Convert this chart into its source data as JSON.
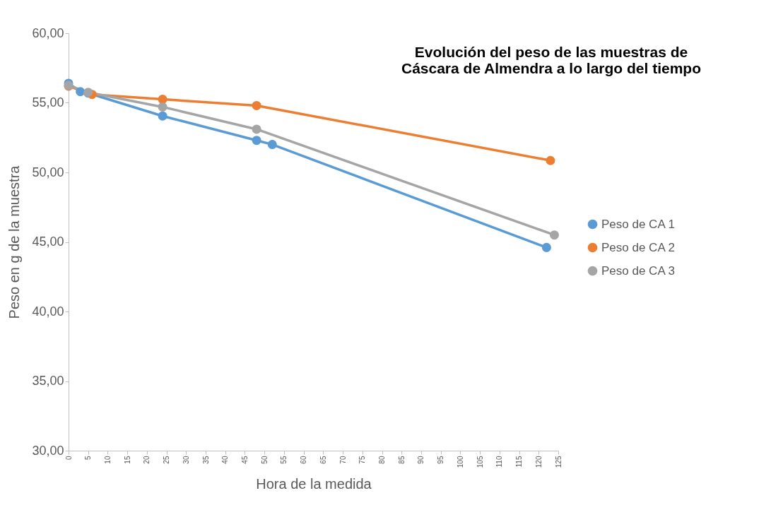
{
  "chart_data": {
    "type": "line",
    "title": "Evolución del peso de las muestras de Cáscara de Almendra a lo largo del tiempo",
    "xlabel": "Hora de la medida",
    "ylabel": "Peso en g de la muestra",
    "xlim": [
      0,
      125
    ],
    "xticks": [
      0,
      5,
      10,
      15,
      20,
      25,
      30,
      35,
      40,
      45,
      50,
      55,
      60,
      65,
      70,
      75,
      80,
      85,
      90,
      95,
      100,
      105,
      110,
      115,
      120,
      125
    ],
    "ylim": [
      30,
      60
    ],
    "yticks": [
      {
        "value": 30,
        "label": "30,00"
      },
      {
        "value": 35,
        "label": "35,00"
      },
      {
        "value": 40,
        "label": "40,00"
      },
      {
        "value": 45,
        "label": "45,00"
      },
      {
        "value": 50,
        "label": "50,00"
      },
      {
        "value": 55,
        "label": "55,00"
      },
      {
        "value": 60,
        "label": "60,00"
      }
    ],
    "grid": false,
    "legend": "right",
    "marker": "circle",
    "line_style": "solid",
    "series": [
      {
        "name": "Peso de CA 1",
        "color": "#5b9bd5",
        "x": [
          0,
          3,
          5,
          24,
          48,
          52,
          122
        ],
        "values": [
          56.4,
          55.8,
          55.7,
          54.05,
          52.3,
          52.0,
          44.6
        ]
      },
      {
        "name": "Peso de CA 2",
        "color": "#ed7d31",
        "x": [
          0,
          6,
          24,
          48,
          123
        ],
        "values": [
          56.2,
          55.6,
          55.25,
          54.8,
          50.85
        ]
      },
      {
        "name": "Peso de CA 3",
        "color": "#a5a5a5",
        "x": [
          0,
          5,
          24,
          48,
          124
        ],
        "values": [
          56.25,
          55.75,
          54.7,
          53.1,
          45.5
        ]
      }
    ]
  }
}
